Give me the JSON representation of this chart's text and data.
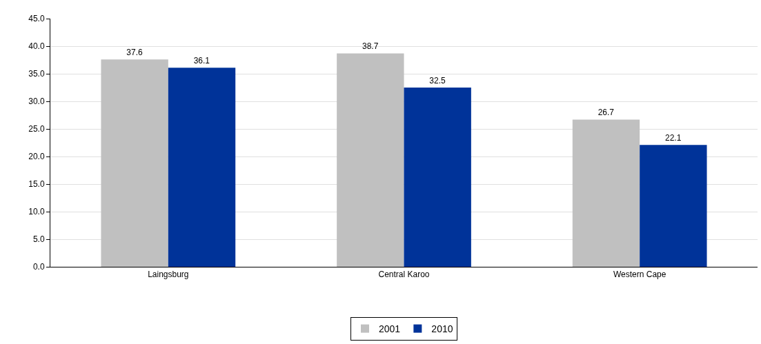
{
  "chart_data": {
    "type": "bar",
    "categories": [
      "Laingsburg",
      "Central Karoo",
      "Western Cape"
    ],
    "series": [
      {
        "name": "2001",
        "color": "#c0c0c0",
        "values": [
          37.6,
          38.7,
          26.7
        ]
      },
      {
        "name": "2010",
        "color": "#003399",
        "values": [
          36.1,
          32.5,
          22.1
        ]
      }
    ],
    "ylim": [
      0,
      45
    ],
    "yticks": [
      {
        "value": 0,
        "label": "0.0"
      },
      {
        "value": 5,
        "label": "5.0"
      },
      {
        "value": 10,
        "label": "10.0"
      },
      {
        "value": 15,
        "label": "15.0"
      },
      {
        "value": 20,
        "label": "20.0"
      },
      {
        "value": 25,
        "label": "25.0"
      },
      {
        "value": 30,
        "label": "30.0"
      },
      {
        "value": 35,
        "label": "35.0"
      },
      {
        "value": 40,
        "label": "40.0"
      },
      {
        "value": 45,
        "label": "45.0"
      }
    ],
    "grid": "y",
    "legend": "bottom",
    "data_labels": true
  }
}
